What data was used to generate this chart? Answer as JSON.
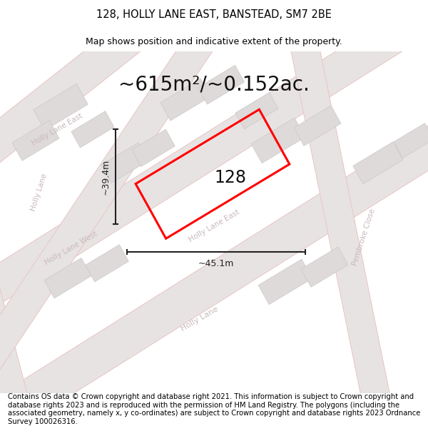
{
  "title": "128, HOLLY LANE EAST, BANSTEAD, SM7 2BE",
  "subtitle": "Map shows position and indicative extent of the property.",
  "area_label": "~615m²/~0.152ac.",
  "property_number": "128",
  "dim_width": "~45.1m",
  "dim_height": "~39.4m",
  "footer": "Contains OS data © Crown copyright and database right 2021. This information is subject to Crown copyright and database rights 2023 and is reproduced with the permission of HM Land Registry. The polygons (including the associated geometry, namely x, y co-ordinates) are subject to Crown copyright and database rights 2023 Ordnance Survey 100026316.",
  "bg_color": "#f2f0f0",
  "property_outline": "#ff0000",
  "dim_color": "#222222",
  "road_fill": "#e8e3e3",
  "road_outline_color": "#e8c8c8",
  "block_fill": "#dedad9",
  "block_outline": "#ccc8c8",
  "street_label_color": "#c8b8bc",
  "title_fontsize": 10.5,
  "subtitle_fontsize": 9,
  "area_fontsize": 20,
  "footer_fontsize": 7.2,
  "prop_label_fontsize": 17,
  "dim_fontsize": 9
}
